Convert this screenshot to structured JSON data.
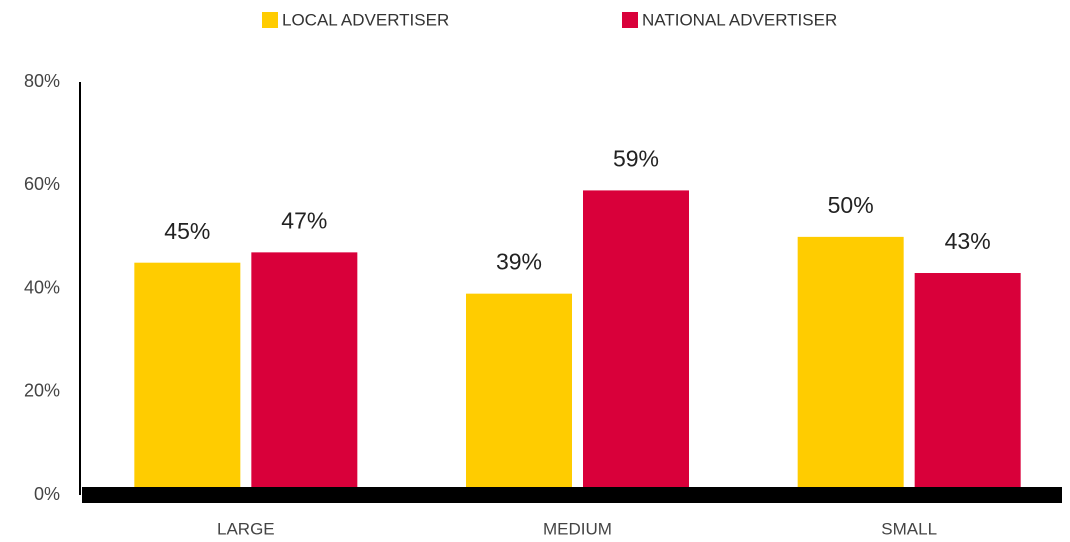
{
  "chart_data": {
    "type": "bar",
    "categories": [
      "LARGE",
      "MEDIUM",
      "SMALL"
    ],
    "series": [
      {
        "name": "LOCAL ADVERTISER",
        "color": "#FFCC00",
        "values": [
          45,
          39,
          50
        ],
        "value_labels": [
          "45%",
          "39%",
          "50%"
        ]
      },
      {
        "name": "NATIONAL ADVERTISER",
        "color": "#D9003A",
        "values": [
          47,
          59,
          43
        ],
        "value_labels": [
          "47%",
          "59%",
          "43%"
        ]
      }
    ],
    "ylim": [
      0,
      80
    ],
    "yticks": [
      {
        "value": 0,
        "label": "0%"
      },
      {
        "value": 20,
        "label": "20%"
      },
      {
        "value": 40,
        "label": "40%"
      },
      {
        "value": 60,
        "label": "60%"
      },
      {
        "value": 80,
        "label": "80%"
      }
    ],
    "grid": false,
    "legend": "top"
  }
}
